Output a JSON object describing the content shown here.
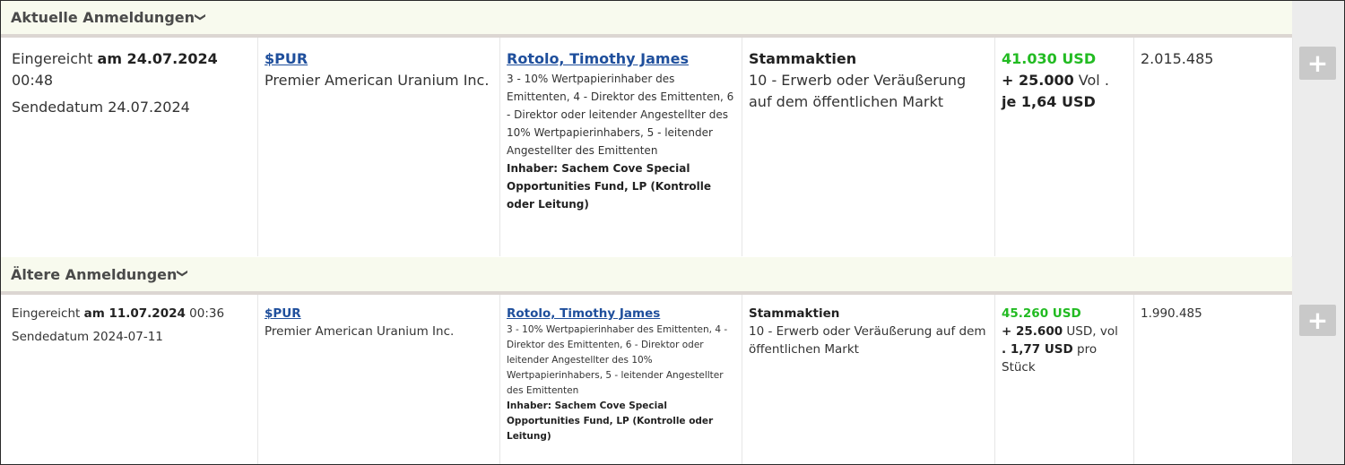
{
  "sections": {
    "current": {
      "title": "Aktuelle Anmeldungen",
      "chevron": "❯"
    },
    "older": {
      "title": "Ältere Anmeldungen",
      "chevron": "❯"
    }
  },
  "rows": [
    {
      "submitted_prefix": "Eingereicht",
      "submitted_date": "am 24.07.2024",
      "submitted_time": "00:48",
      "send_date": "Sendedatum 24.07.2024",
      "ticker": "$PUR",
      "company": "Premier American Uranium Inc.",
      "insider_name": "Rotolo, Timothy James",
      "relationship": "3 - 10% Wertpapierinhaber des Emittenten, 4 - Direktor des Emittenten, 6 - Direktor oder leitender Angestellter des 10% Wertpapierinhabers, 5 - leitender Angestellter des Emittenten",
      "holder": "Inhaber: Sachem Cove Special Opportunities Fund, LP (Kontrolle oder Leitung)",
      "security_type": "Stammaktien",
      "transaction": "10 - Erwerb oder Veräußerung auf dem öffentlichen Markt",
      "value": "41.030 USD",
      "volume_bold": "+ 25.000",
      "volume_rest": " Vol .",
      "price_bold": "je 1,64 USD",
      "price_rest": "",
      "shares_held": "2.015.485",
      "plus_icon": "plus-icon"
    },
    {
      "submitted_prefix": "Eingereicht",
      "submitted_date": "am 11.07.2024",
      "submitted_time": "00:36",
      "send_date": "Sendedatum 2024-07-11",
      "ticker": "$PUR",
      "company": "Premier American Uranium Inc.",
      "insider_name": "Rotolo, Timothy James",
      "relationship": "3 - 10% Wertpapierinhaber des Emittenten, 4 - Direktor des Emittenten, 6 - Direktor oder leitender Angestellter des 10% Wertpapierinhabers, 5 - leitender Angestellter des Emittenten",
      "holder": "Inhaber: Sachem Cove Special Opportunities Fund, LP (Kontrolle oder Leitung)",
      "security_type": "Stammaktien",
      "transaction": "10 - Erwerb oder Veräußerung auf dem öffentlichen Markt",
      "value": "45.260 USD",
      "volume_bold": "+ 25.600",
      "volume_rest": " USD, vol",
      "price_bold": ". 1,77 USD",
      "price_rest": " pro Stück",
      "shares_held": "1.990.485",
      "plus_icon": "plus-icon"
    }
  ],
  "colors": {
    "accent_green": "#22bb22",
    "link_blue": "#1f4f9c",
    "header_bg": "#f8faee",
    "button_gray": "#c9c9c9"
  }
}
